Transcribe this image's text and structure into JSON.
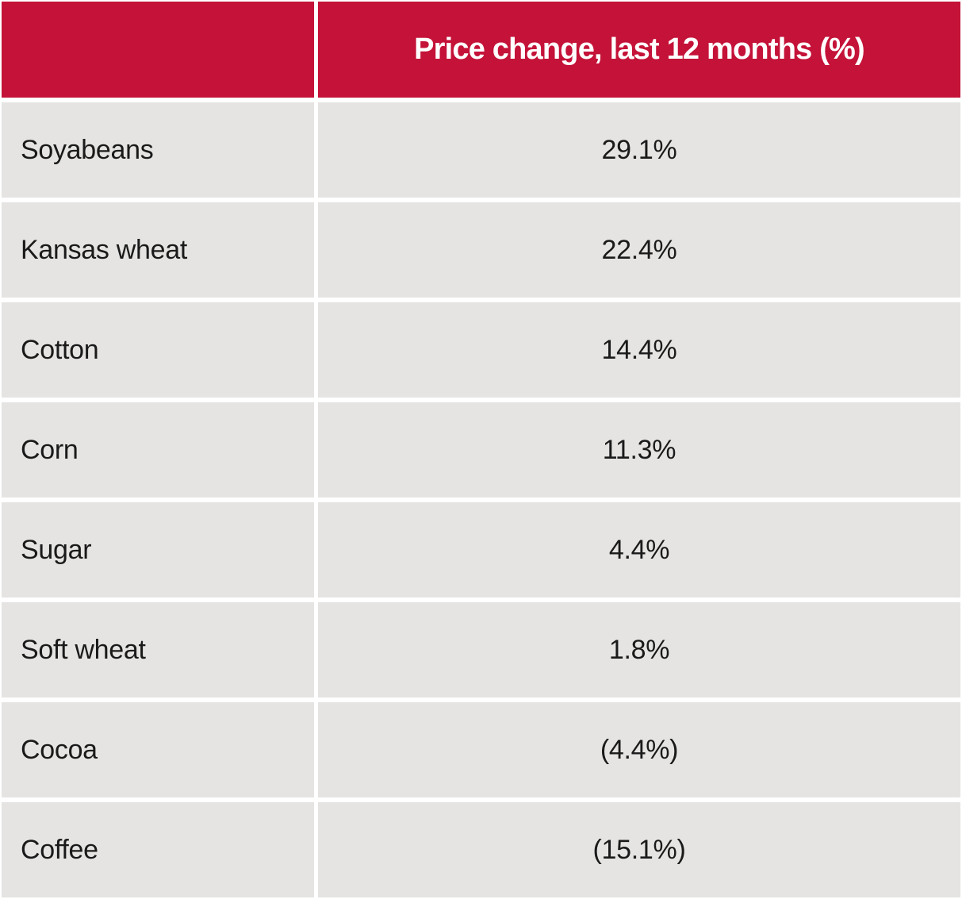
{
  "table": {
    "header": {
      "spacer": "",
      "title": "Price change, last 12 months (%)"
    },
    "rows": [
      {
        "label": "Soyabeans",
        "value": "29.1%"
      },
      {
        "label": "Kansas wheat",
        "value": "22.4%"
      },
      {
        "label": "Cotton",
        "value": "14.4%"
      },
      {
        "label": "Corn",
        "value": "11.3%"
      },
      {
        "label": "Sugar",
        "value": "4.4%"
      },
      {
        "label": "Soft wheat",
        "value": "1.8%"
      },
      {
        "label": "Cocoa",
        "value": "(4.4%)"
      },
      {
        "label": "Coffee",
        "value": "(15.1%)"
      }
    ]
  },
  "colors": {
    "header_bg": "#C41238",
    "header_text": "#FFFFFF",
    "row_bg": "#E5E4E2",
    "row_text": "#1A1A1A",
    "background": "#FFFFFF"
  },
  "chart_data": {
    "type": "table",
    "title": "",
    "columns": [
      "",
      "Price change, last 12 months (%)"
    ],
    "rows": [
      [
        "Soyabeans",
        "29.1%"
      ],
      [
        "Kansas wheat",
        "22.4%"
      ],
      [
        "Cotton",
        "14.4%"
      ],
      [
        "Corn",
        "11.3%"
      ],
      [
        "Sugar",
        "4.4%"
      ],
      [
        "Soft wheat",
        "1.8%"
      ],
      [
        "Cocoa",
        "(4.4%)"
      ],
      [
        "Coffee",
        "(15.1%)"
      ]
    ],
    "values_numeric": [
      29.1,
      22.4,
      14.4,
      11.3,
      4.4,
      1.8,
      -4.4,
      -15.1
    ],
    "layout": {
      "header_fill": "#C41238",
      "row_fill": "#E5E4E2",
      "value_alignment": "center",
      "label_alignment": "left",
      "negative_format": "parentheses"
    }
  }
}
